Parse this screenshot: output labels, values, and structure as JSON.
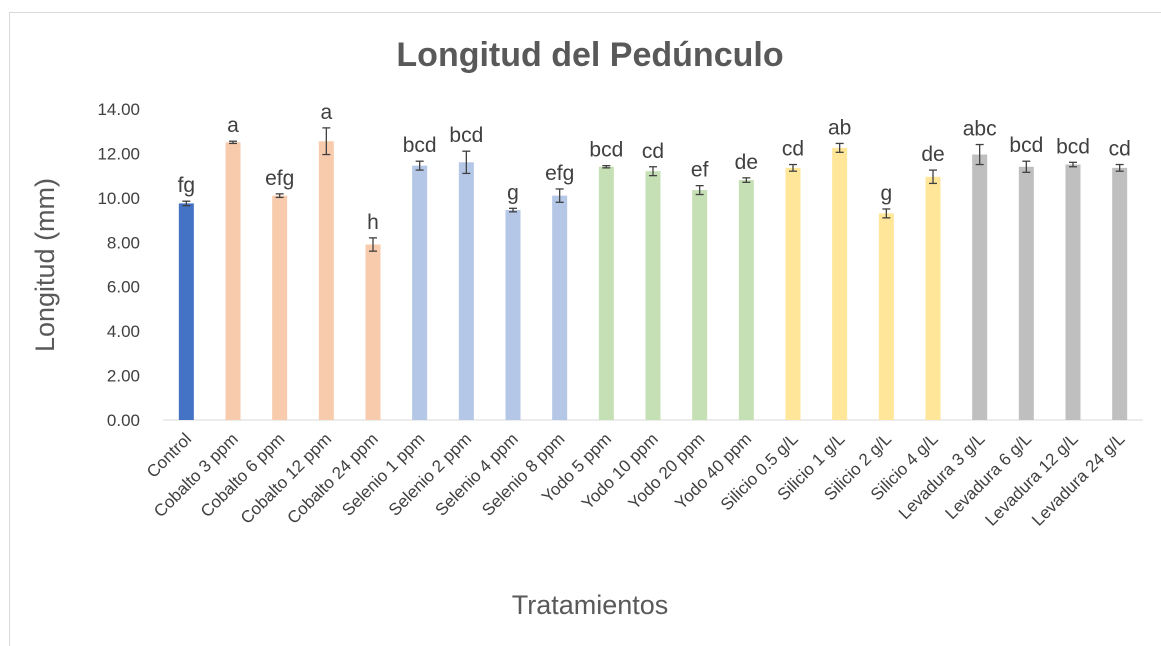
{
  "chart_data": {
    "type": "bar",
    "title": "Longitud del Pedúnculo",
    "x_label": "Tratamientos",
    "y_label": "Longitud (mm)",
    "categories": [
      "Control",
      "Cobalto 3 ppm",
      "Cobalto 6 ppm",
      "Cobalto 12 ppm",
      "Cobalto 24 ppm",
      "Selenio 1 ppm",
      "Selenio 2 ppm",
      "Selenio 4 ppm",
      "Selenio 8 ppm",
      "Yodo 5 ppm",
      "Yodo 10 ppm",
      "Yodo 20 ppm",
      "Yodo 40 ppm",
      "Silicio 0.5 g/L",
      "Silicio 1 g/L",
      "Silicio 2 g/L",
      "Silicio 4 g/L",
      "Levadura 3 g/L",
      "Levadura 6 g/L",
      "Levadura 12 g/L",
      "Levadura 24 g/L"
    ],
    "values": [
      9.75,
      12.5,
      10.1,
      12.55,
      7.9,
      11.45,
      11.6,
      9.45,
      10.1,
      11.4,
      11.2,
      10.35,
      10.8,
      11.35,
      12.25,
      9.3,
      10.95,
      11.95,
      11.4,
      11.5,
      11.35
    ],
    "errors": [
      0.1,
      0.05,
      0.08,
      0.6,
      0.3,
      0.2,
      0.5,
      0.08,
      0.3,
      0.05,
      0.2,
      0.2,
      0.1,
      0.15,
      0.2,
      0.2,
      0.3,
      0.45,
      0.25,
      0.1,
      0.15
    ],
    "annotations": [
      "fg",
      "a",
      "efg",
      "a",
      "h",
      "bcd",
      "bcd",
      "g",
      "efg",
      "bcd",
      "cd",
      "ef",
      "de",
      "cd",
      "ab",
      "g",
      "de",
      "abc",
      "bcd",
      "bcd",
      "cd"
    ],
    "colors": [
      "#4472c4",
      "#f8cbad",
      "#f8cbad",
      "#f8cbad",
      "#f8cbad",
      "#b4c7e7",
      "#b4c7e7",
      "#b4c7e7",
      "#b4c7e7",
      "#c5e0b4",
      "#c5e0b4",
      "#c5e0b4",
      "#c5e0b4",
      "#ffe699",
      "#ffe699",
      "#ffe699",
      "#ffe699",
      "#bfbfbf",
      "#bfbfbf",
      "#bfbfbf",
      "#bfbfbf"
    ],
    "ylim": [
      0,
      14
    ],
    "yticks": [
      {
        "value": 0,
        "label": "0.00"
      },
      {
        "value": 2,
        "label": "2.00"
      },
      {
        "value": 4,
        "label": "4.00"
      },
      {
        "value": 6,
        "label": "6.00"
      },
      {
        "value": 8,
        "label": "8.00"
      },
      {
        "value": 10,
        "label": "10.00"
      },
      {
        "value": 12,
        "label": "12.00"
      },
      {
        "value": 14,
        "label": "14.00"
      }
    ],
    "grid": false
  }
}
